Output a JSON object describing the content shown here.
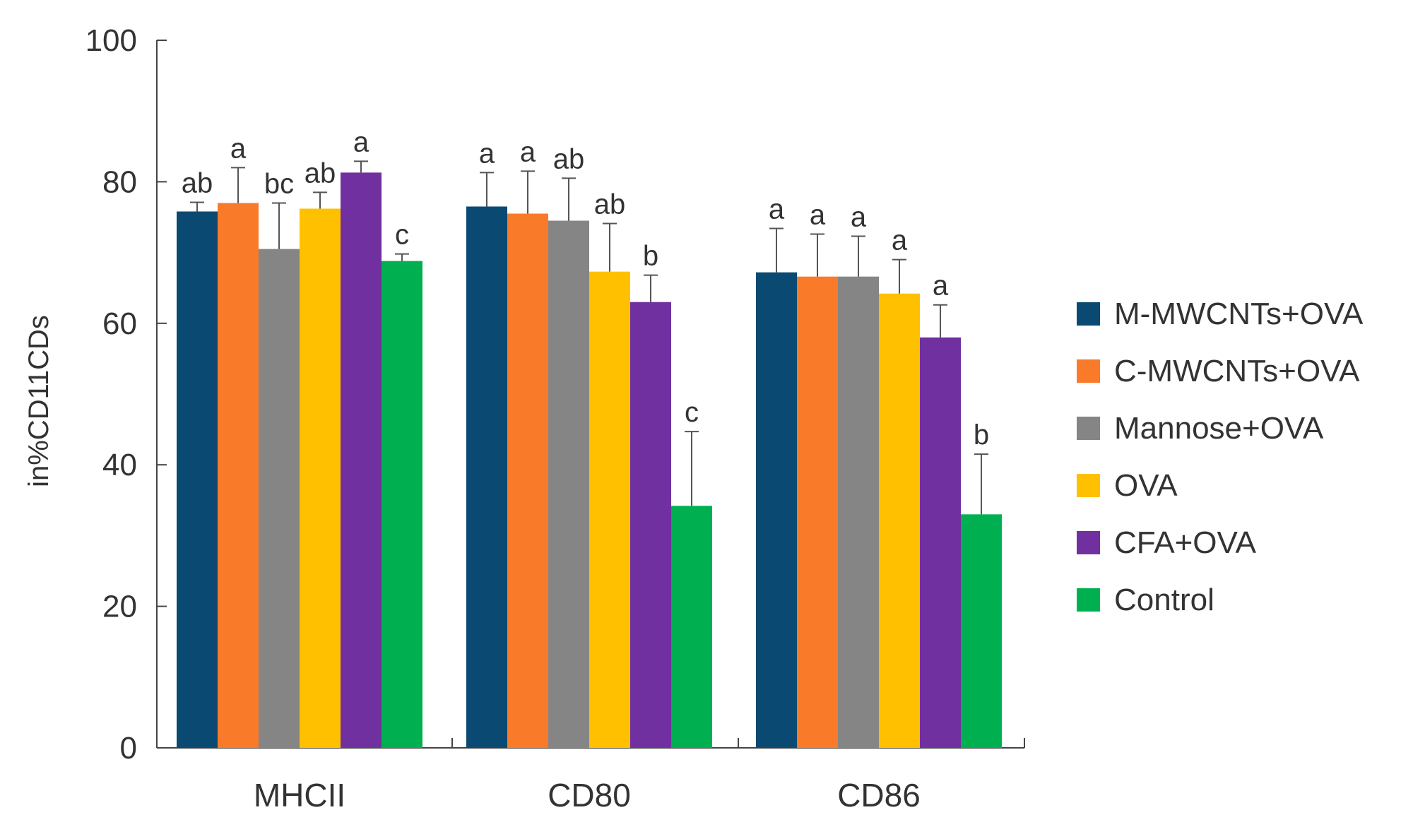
{
  "chart_data": {
    "type": "bar",
    "title": "",
    "xlabel": "",
    "ylabel": "in%CD11CDs",
    "ylim": [
      0,
      100
    ],
    "yticks": [
      0,
      20,
      40,
      60,
      80,
      100
    ],
    "grid": false,
    "legend_position": "right",
    "categories": [
      "MHCII",
      "CD80",
      "CD86"
    ],
    "series": [
      {
        "name": "M-MWCNTs+OVA",
        "color": "#0a4a72",
        "values": [
          75.8,
          76.5,
          67.2
        ],
        "errors": [
          1.3,
          4.8,
          6.2
        ],
        "labels": [
          "ab",
          "a",
          "a"
        ]
      },
      {
        "name": "C-MWCNTs+OVA",
        "color": "#f97b2a",
        "values": [
          77.0,
          75.5,
          66.6
        ],
        "errors": [
          5.0,
          6.0,
          6.0
        ],
        "labels": [
          "a",
          "a",
          "a"
        ]
      },
      {
        "name": "Mannose+OVA",
        "color": "#858585",
        "values": [
          70.5,
          74.5,
          66.6
        ],
        "errors": [
          6.5,
          6.0,
          5.7
        ],
        "labels": [
          "bc",
          "ab",
          "a"
        ]
      },
      {
        "name": "OVA",
        "color": "#ffc000",
        "values": [
          76.2,
          67.3,
          64.2
        ],
        "errors": [
          2.3,
          6.8,
          4.8
        ],
        "labels": [
          "ab",
          "ab",
          "a"
        ]
      },
      {
        "name": "CFA+OVA",
        "color": "#7030a0",
        "values": [
          81.3,
          63.0,
          58.0
        ],
        "errors": [
          1.6,
          3.8,
          4.6
        ],
        "labels": [
          "a",
          "b",
          "a"
        ]
      },
      {
        "name": "Control",
        "color": "#00b050",
        "values": [
          68.8,
          34.2,
          33.0
        ],
        "errors": [
          1.0,
          10.5,
          8.5
        ],
        "labels": [
          "c",
          "c",
          "b"
        ]
      }
    ]
  }
}
